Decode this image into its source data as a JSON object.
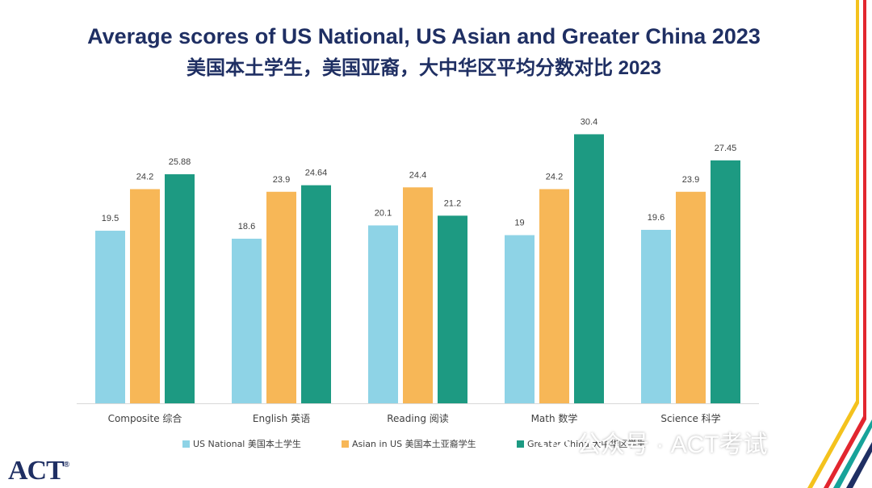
{
  "title_line1": "Average scores of US National, US Asian and Greater China 2023",
  "title_line2": "美国本土学生，美国亚裔，大中华区平均分数对比 2023",
  "logo_text": "ACT",
  "watermark_text": "公众号 · ACT考试",
  "colors": {
    "title": "#1f2f63",
    "us_national": "#8ed3e6",
    "asian_us": "#f7b757",
    "greater_china": "#1d9a82",
    "stripe_yellow": "#f4c21d",
    "stripe_red": "#e2262f",
    "stripe_teal": "#17a39a",
    "stripe_navy": "#1f2f63"
  },
  "chart_data": {
    "type": "bar",
    "categories": [
      "Composite 综合",
      "English 英语",
      "Reading 阅读",
      "Math 数学",
      "Science 科学"
    ],
    "series": [
      {
        "name": "US National 美国本土学生",
        "values": [
          19.5,
          18.6,
          20.1,
          19,
          19.6
        ],
        "labels": [
          "19.5",
          "18.6",
          "20.1",
          "19",
          "19.6"
        ],
        "color": "#8ed3e6"
      },
      {
        "name": "Asian in US 美国本土亚裔学生",
        "values": [
          24.2,
          23.9,
          24.4,
          24.2,
          23.9
        ],
        "labels": [
          "24.2",
          "23.9",
          "24.4",
          "24.2",
          "23.9"
        ],
        "color": "#f7b757"
      },
      {
        "name": "Greater China 大中华区学生",
        "values": [
          25.88,
          24.64,
          21.2,
          30.4,
          27.45
        ],
        "labels": [
          "25.88",
          "24.64",
          "21.2",
          "30.4",
          "27.45"
        ],
        "color": "#1d9a82"
      }
    ],
    "ylim": [
      0,
      36
    ],
    "grid": false,
    "legend": "bottom",
    "data_labels": true
  }
}
